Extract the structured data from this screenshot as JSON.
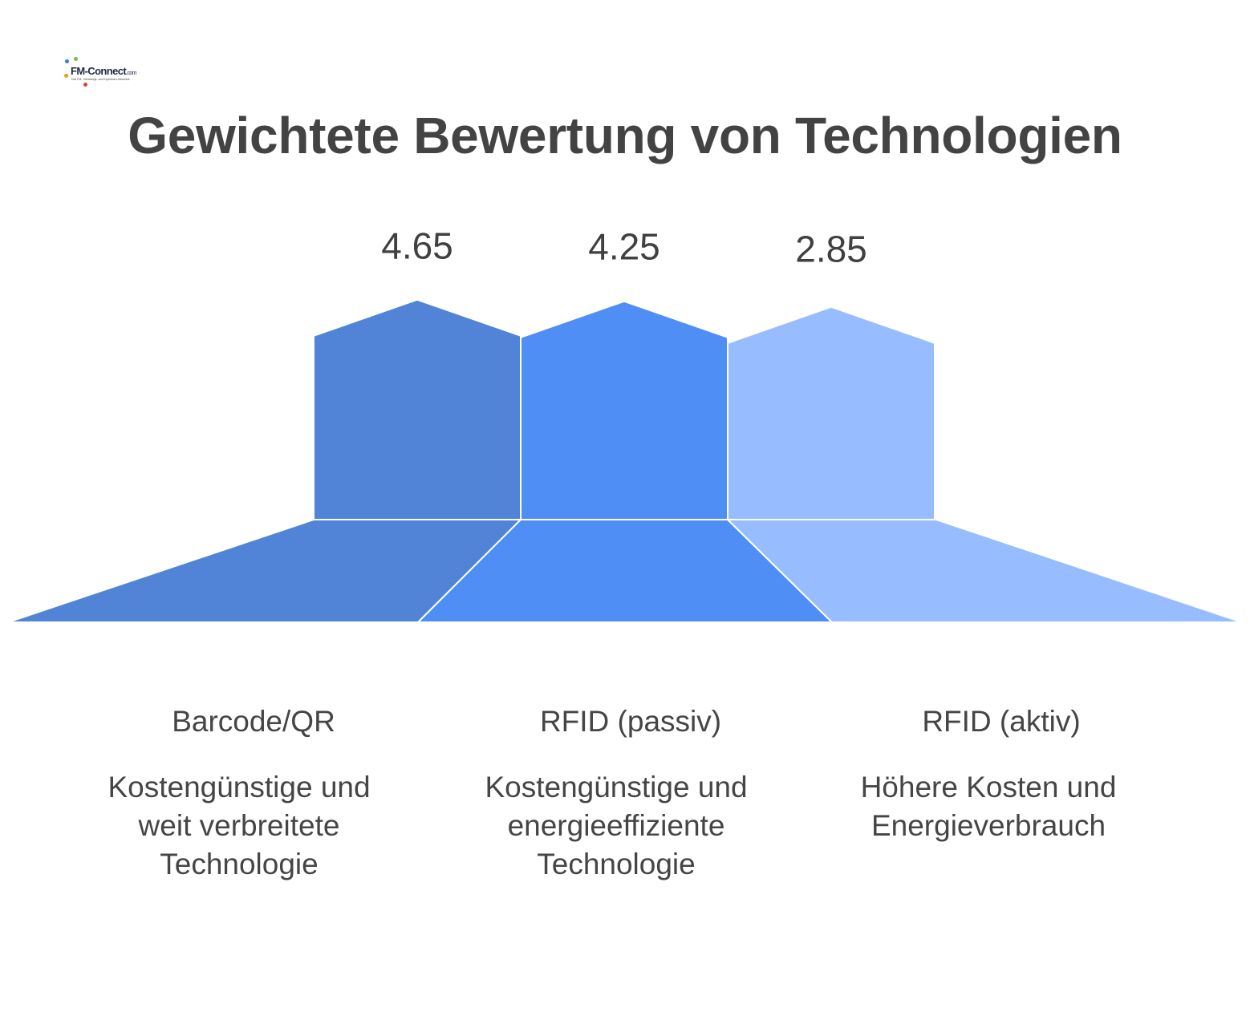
{
  "logo": {
    "name": "FM-Connect",
    "domain": ".com",
    "tagline": "Das FM-, Beratungs- und Expertisen-Netzwerk"
  },
  "title": "Gewichtete Bewertung von Technologien",
  "chart_data": {
    "type": "bar",
    "title": "Gewichtete Bewertung von Technologien",
    "categories": [
      "Barcode/QR",
      "RFID (passiv)",
      "RFID (aktiv)"
    ],
    "values": [
      4.65,
      4.25,
      2.85
    ],
    "descriptions": [
      "Kostengünstige und weit verbreitete Technologie",
      "Kostengünstige und energieeffiziente Technologie",
      "Höhere Kosten und Energieverbrauch"
    ],
    "colors": [
      "#5183d6",
      "#4f8ef5",
      "#97bcff"
    ],
    "grid": false,
    "legend": "none"
  }
}
